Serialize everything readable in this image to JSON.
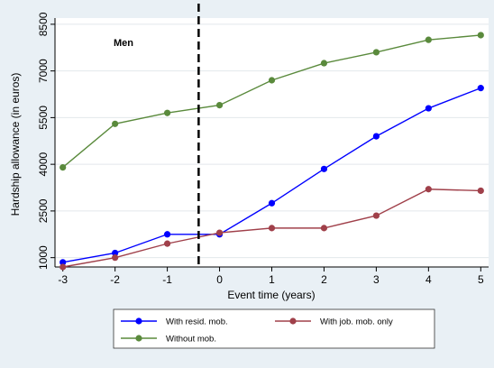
{
  "chart_data": {
    "type": "line",
    "annotation": "Men",
    "xlabel": "Event time (years)",
    "ylabel": "Hardship allowance (in euros)",
    "x": [
      -3,
      -2,
      -1,
      0,
      1,
      2,
      3,
      4,
      5
    ],
    "xlim": [
      -3.15,
      5.15
    ],
    "ylim": [
      700,
      8700
    ],
    "yticks": [
      1000,
      2500,
      4000,
      5500,
      7000,
      8500
    ],
    "xticks": [
      -3,
      -2,
      -1,
      0,
      1,
      2,
      3,
      4,
      5
    ],
    "grid": "horizontal",
    "legend_position": "bottom",
    "event_line": {
      "x": -0.4,
      "style": "dashed"
    },
    "series": [
      {
        "name": "With resid. mob.",
        "color": "#0000ff",
        "x": [
          -3,
          -2,
          -1,
          -0.4,
          0,
          1,
          2,
          3,
          4,
          5
        ],
        "values": [
          850,
          1150,
          1750,
          1750,
          1750,
          2750,
          3850,
          4900,
          5800,
          6450
        ]
      },
      {
        "name": "With job. mob. only",
        "color": "#a0404a",
        "x": [
          -3,
          -2,
          -1,
          0,
          1,
          2,
          3,
          4,
          5
        ],
        "values": [
          700,
          1000,
          1450,
          1800,
          1950,
          1950,
          2350,
          3200,
          3150
        ]
      },
      {
        "name": "Without  mob.",
        "color": "#5a8a3c",
        "x": [
          -3,
          -2,
          -1,
          0,
          1,
          2,
          3,
          4,
          5
        ],
        "values": [
          3900,
          5300,
          5650,
          5900,
          6700,
          7250,
          7600,
          8000,
          8150
        ]
      }
    ]
  }
}
